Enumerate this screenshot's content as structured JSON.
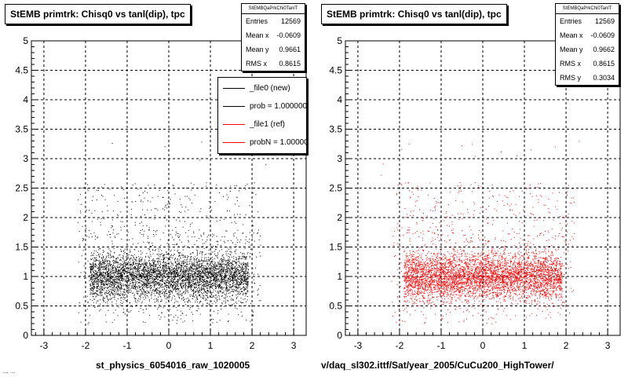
{
  "chart_data": [
    {
      "type": "scatter",
      "title": "StEMB primtrk: Chisq0 vs tanl(dip), tpc",
      "xlabel": "st_physics_6054016_raw_1020005",
      "ylabel": "",
      "xlim": [
        -3.3,
        3.3
      ],
      "ylim": [
        0,
        5
      ],
      "x_ticks": [
        "-3",
        "-2",
        "-1",
        "0",
        "1",
        "2",
        "3"
      ],
      "y_ticks": [
        "0",
        "0.5",
        "1",
        "1.5",
        "2",
        "2.5",
        "3",
        "3.5",
        "4",
        "4.5",
        "5"
      ],
      "grid": true,
      "marker_color": "#000000",
      "stats": {
        "name": "StEMBQaPrkChi0TanlT",
        "rows": [
          {
            "label": "Entries",
            "value": "12569"
          },
          {
            "label": "Mean x",
            "value": "-0.0609"
          },
          {
            "label": "Mean y",
            "value": "0.9661"
          },
          {
            "label": "RMS x",
            "value": "0.8615"
          }
        ]
      },
      "legend_position": "top-right",
      "legend": [
        {
          "label": "_file0 (new)",
          "color": "#000000"
        },
        {
          "label": "prob = 1.000000",
          "color": "#000000"
        },
        {
          "label": "_file1 (ref)",
          "color": "#ff0000"
        },
        {
          "label": "probN = 1.000000",
          "color": "#ff0000"
        }
      ],
      "distribution": {
        "x_range": [
          -2.2,
          2.2
        ],
        "core_x": [
          -1.9,
          1.9
        ],
        "core_y": [
          0.4,
          1.6
        ],
        "center_y": 1.0
      }
    },
    {
      "type": "scatter",
      "title": "StEMB primtrk: Chisq0 vs tanl(dip), tpc",
      "xlabel": "v/daq_sl302.ittf/Sat/year_2005/CuCu200_HighTower/",
      "ylabel": "",
      "xlim": [
        -3.3,
        3.3
      ],
      "ylim": [
        0,
        5
      ],
      "x_ticks": [
        "-3",
        "-2",
        "-1",
        "0",
        "1",
        "2",
        "3"
      ],
      "y_ticks": [
        "0",
        "0.5",
        "1",
        "1.5",
        "2",
        "2.5",
        "3",
        "3.5",
        "4",
        "4.5",
        "5"
      ],
      "grid": true,
      "marker_color": "#ff0000",
      "stats": {
        "name": "StEMBQaPrkChi0TanlT",
        "rows": [
          {
            "label": "Entries",
            "value": "12569"
          },
          {
            "label": "Mean x",
            "value": "-0.0609"
          },
          {
            "label": "Mean y",
            "value": "0.9662"
          },
          {
            "label": "RMS x",
            "value": "0.8615"
          },
          {
            "label": "RMS y",
            "value": "0.3034"
          }
        ]
      },
      "distribution": {
        "x_range": [
          -2.2,
          2.2
        ],
        "core_x": [
          -1.9,
          1.9
        ],
        "core_y": [
          0.4,
          1.6
        ],
        "center_y": 1.0
      }
    }
  ],
  "footer": "... ..."
}
